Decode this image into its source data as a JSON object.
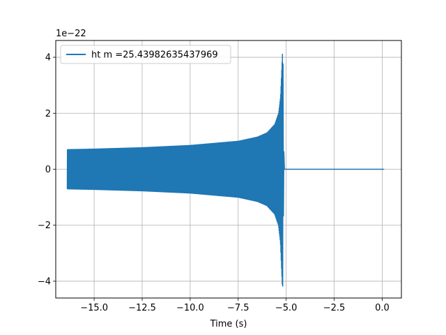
{
  "chart_data": {
    "type": "line",
    "title": "",
    "xlabel": "Time (s)",
    "ylabel": "",
    "y_scale_label": "1e−22",
    "xlim": [
      -17.0,
      1.0
    ],
    "ylim": [
      -4.6,
      4.6
    ],
    "x_ticks": [
      -15.0,
      -12.5,
      -10.0,
      -7.5,
      -5.0,
      -2.5,
      0.0
    ],
    "x_tick_labels": [
      "−15.0",
      "−12.5",
      "−10.0",
      "−7.5",
      "−5.0",
      "−2.5",
      "0.0"
    ],
    "y_ticks": [
      -4,
      -2,
      0,
      2,
      4
    ],
    "y_tick_labels": [
      "−4",
      "−2",
      "0",
      "2",
      "4"
    ],
    "grid": true,
    "legend_position": "upper-left",
    "series": [
      {
        "name": "ht m =25.43982635437969",
        "color": "#1f77b4",
        "x_start": -16.4,
        "merger_time": -5.2,
        "x_end": 0.1,
        "amplitude_envelope": {
          "x": [
            -16.4,
            -15.0,
            -12.5,
            -10.0,
            -7.5,
            -6.5,
            -6.0,
            -5.6,
            -5.4,
            -5.3,
            -5.2
          ],
          "y": [
            0.7,
            0.72,
            0.77,
            0.85,
            1.0,
            1.15,
            1.3,
            1.6,
            2.0,
            2.6,
            4.18
          ]
        }
      }
    ]
  }
}
